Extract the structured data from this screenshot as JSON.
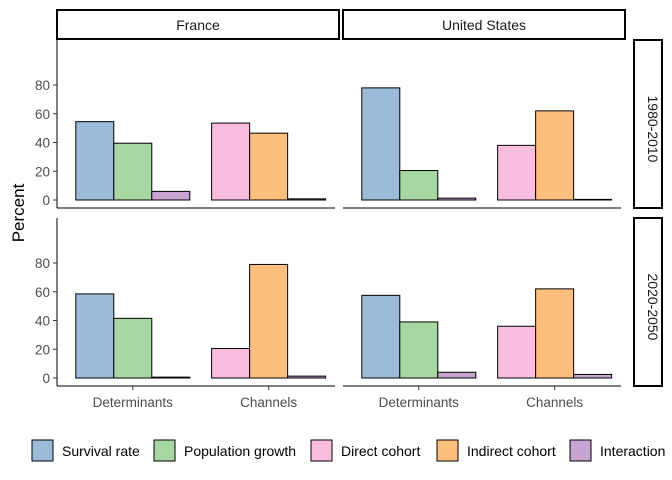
{
  "chart_data": {
    "type": "bar",
    "facet_columns": [
      "France",
      "United States"
    ],
    "facet_rows": [
      "1980-2010",
      "2020-2050"
    ],
    "categories": [
      "Determinants",
      "Channels"
    ],
    "ylabel": "Percent",
    "ylim": [
      0,
      85
    ],
    "yticks": [
      0,
      20,
      40,
      60,
      80
    ],
    "grid": false,
    "legend_position": "bottom",
    "category_series": {
      "Determinants": [
        "Survival rate",
        "Population growth",
        "Interaction"
      ],
      "Channels": [
        "Direct cohort",
        "Indirect cohort",
        "Interaction"
      ]
    },
    "series": [
      {
        "name": "Survival rate",
        "color": "#9BBBD9"
      },
      {
        "name": "Population growth",
        "color": "#A7D7A3"
      },
      {
        "name": "Direct cohort",
        "color": "#F9BEDF"
      },
      {
        "name": "Indirect cohort",
        "color": "#FDBE7E"
      },
      {
        "name": "Interaction",
        "color": "#C8A4D3"
      }
    ],
    "values": {
      "France": {
        "1980-2010": {
          "Determinants": {
            "Survival rate": 54.5,
            "Population growth": 39.5,
            "Interaction": 6.0
          },
          "Channels": {
            "Direct cohort": 53.5,
            "Indirect cohort": 46.5,
            "Interaction": 0.8
          }
        },
        "2020-2050": {
          "Determinants": {
            "Survival rate": 58.5,
            "Population growth": 41.5,
            "Interaction": 0.6
          },
          "Channels": {
            "Direct cohort": 20.5,
            "Indirect cohort": 79.0,
            "Interaction": 1.3
          }
        }
      },
      "United States": {
        "1980-2010": {
          "Determinants": {
            "Survival rate": 78.0,
            "Population growth": 20.5,
            "Interaction": 1.3
          },
          "Channels": {
            "Direct cohort": 38.0,
            "Indirect cohort": 62.0,
            "Interaction": 0.0
          }
        },
        "2020-2050": {
          "Determinants": {
            "Survival rate": 57.5,
            "Population growth": 39.0,
            "Interaction": 4.0
          },
          "Channels": {
            "Direct cohort": 36.0,
            "Indirect cohort": 62.0,
            "Interaction": 2.5
          }
        }
      }
    }
  }
}
